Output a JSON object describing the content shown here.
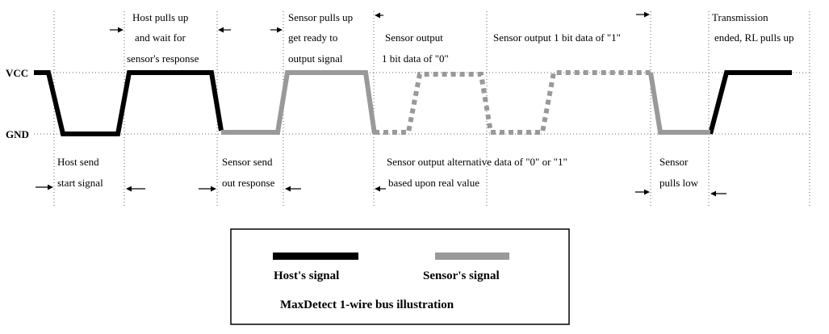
{
  "axis": {
    "vcc": "VCC",
    "gnd": "GND"
  },
  "phases": {
    "host_send": [
      "Host send",
      "start signal"
    ],
    "host_pulls_up": [
      "Host pulls up",
      "and wait for",
      "sensor's response"
    ],
    "sensor_send": [
      "Sensor send",
      "out response"
    ],
    "sensor_pulls_up": [
      "Sensor pulls up",
      "get ready to",
      "output signal"
    ],
    "bit0": [
      "Sensor output",
      "1 bit data of \"0\""
    ],
    "bit1": [
      "Sensor output 1 bit data of \"1\""
    ],
    "alternative": [
      "Sensor output alternative data of \"0\" or \"1\"",
      "based upon real value"
    ],
    "sensor_pulls_low": [
      "Sensor",
      "pulls low"
    ],
    "transmission_end": [
      "Transmission",
      "ended, RL pulls up"
    ]
  },
  "legend": {
    "host": "Host's signal",
    "sensor": "Sensor's signal",
    "caption": "MaxDetect 1-wire bus illustration"
  },
  "colors": {
    "host": "#000000",
    "sensor": "#999999",
    "guide": "#666666"
  },
  "icons": {
    "arrow_right": "arrow-right-icon",
    "arrow_left": "arrow-left-icon"
  }
}
